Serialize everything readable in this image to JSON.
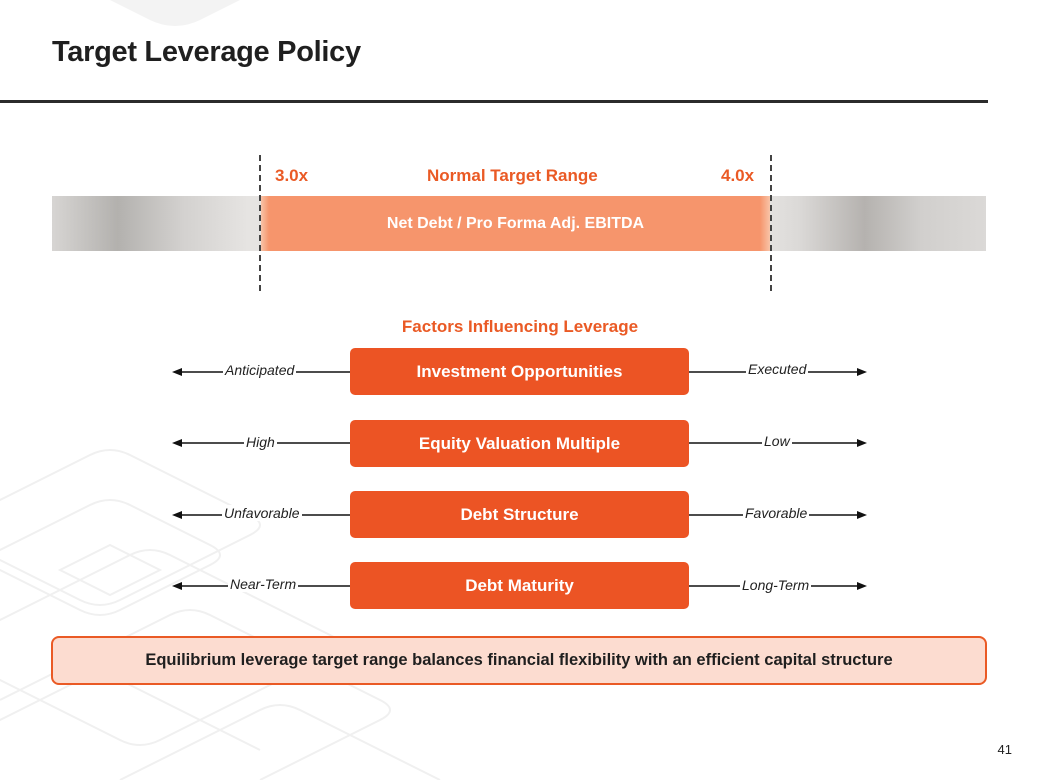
{
  "slide": {
    "title": "Target Leverage Policy",
    "page_number": "41"
  },
  "leverage_range": {
    "low_label": "3.0x",
    "high_label": "4.0x",
    "range_title": "Normal Target Range",
    "metric_label": "Net Debt / Pro Forma Adj. EBITDA",
    "low_value": 3.0,
    "high_value": 4.0
  },
  "factors": {
    "heading": "Factors Influencing Leverage",
    "items": [
      {
        "name": "Investment Opportunities",
        "left": "Anticipated",
        "right": "Executed"
      },
      {
        "name": "Equity Valuation Multiple",
        "left": "High",
        "right": "Low"
      },
      {
        "name": "Debt Structure",
        "left": "Unfavorable",
        "right": "Favorable"
      },
      {
        "name": "Debt Maturity",
        "left": "Near-Term",
        "right": "Long-Term"
      }
    ]
  },
  "callout": {
    "text": "Equilibrium leverage target range balances financial flexibility with an efficient capital structure"
  },
  "colors": {
    "accent": "#EA5A25",
    "factor_box": "#EC5424",
    "band": "#F6956C",
    "callout_fill": "#FCDCD0"
  }
}
